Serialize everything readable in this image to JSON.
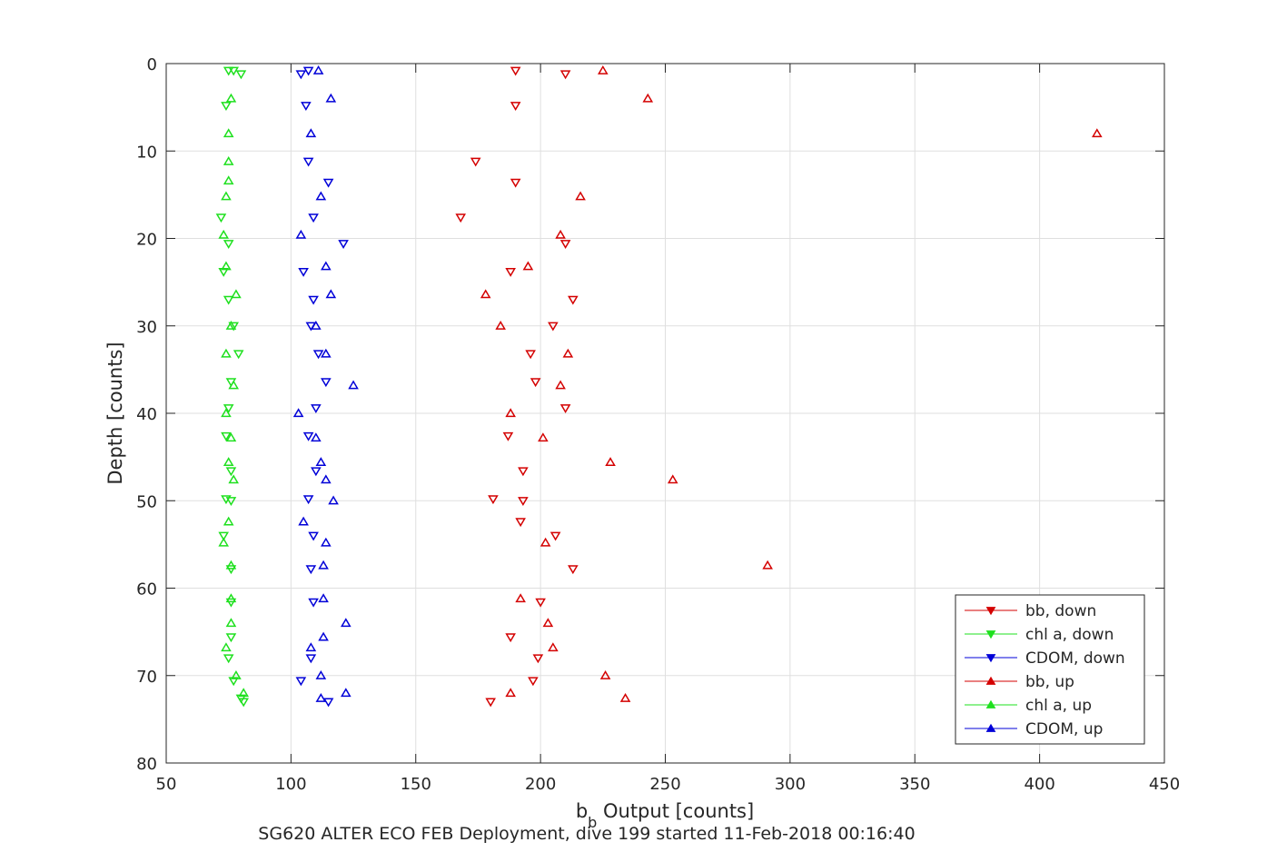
{
  "chart_data": {
    "type": "scatter",
    "title": "SG620 ALTER ECO FEB Deployment, dive 199 started 11-Feb-2018 00:16:40",
    "xlabel_main": "b",
    "xlabel_sub": "b",
    "xlabel_rest": " Output [counts]",
    "ylabel": "Depth [counts]",
    "xlim": [
      50,
      450
    ],
    "ylim": [
      0,
      80
    ],
    "y_reversed": true,
    "grid": true,
    "legend_position": "bottom-right",
    "xticks": [
      50,
      100,
      150,
      200,
      250,
      300,
      350,
      400,
      450
    ],
    "yticks": [
      0,
      10,
      20,
      30,
      40,
      50,
      60,
      70,
      80
    ],
    "series": [
      {
        "name": "bb, down",
        "color": "#d40000",
        "marker": "triangle-down",
        "points": [
          [
            190,
            0.8
          ],
          [
            210,
            1.2
          ],
          [
            190,
            4.8
          ],
          [
            174,
            11.2
          ],
          [
            190,
            13.6
          ],
          [
            168,
            17.6
          ],
          [
            210,
            20.6
          ],
          [
            188,
            23.8
          ],
          [
            213,
            27.0
          ],
          [
            205,
            30.0
          ],
          [
            196,
            33.2
          ],
          [
            198,
            36.4
          ],
          [
            210,
            39.4
          ],
          [
            187,
            42.6
          ],
          [
            193,
            46.6
          ],
          [
            181,
            49.8
          ],
          [
            193,
            50.0
          ],
          [
            192,
            52.4
          ],
          [
            206,
            54.0
          ],
          [
            213,
            57.8
          ],
          [
            200,
            61.6
          ],
          [
            188,
            65.6
          ],
          [
            199,
            68.0
          ],
          [
            197,
            70.6
          ],
          [
            180,
            73.0
          ]
        ]
      },
      {
        "name": "chl a, down",
        "color": "#1ee01e",
        "marker": "triangle-down",
        "points": [
          [
            75,
            0.8
          ],
          [
            77,
            0.8
          ],
          [
            80,
            1.2
          ],
          [
            74,
            4.8
          ],
          [
            72,
            17.6
          ],
          [
            75,
            20.6
          ],
          [
            73,
            23.8
          ],
          [
            75,
            27.0
          ],
          [
            77,
            30.0
          ],
          [
            79,
            33.2
          ],
          [
            76,
            36.4
          ],
          [
            75,
            39.4
          ],
          [
            74,
            42.6
          ],
          [
            76,
            46.6
          ],
          [
            74,
            49.8
          ],
          [
            76,
            50.0
          ],
          [
            73,
            54.0
          ],
          [
            76,
            57.8
          ],
          [
            76,
            61.6
          ],
          [
            76,
            65.6
          ],
          [
            75,
            68.0
          ],
          [
            77,
            70.6
          ],
          [
            80,
            72.6
          ],
          [
            81,
            73.0
          ]
        ]
      },
      {
        "name": "CDOM, down",
        "color": "#0000d8",
        "marker": "triangle-down",
        "points": [
          [
            107,
            0.8
          ],
          [
            104,
            1.2
          ],
          [
            106,
            4.8
          ],
          [
            107,
            11.2
          ],
          [
            115,
            13.6
          ],
          [
            109,
            17.6
          ],
          [
            121,
            20.6
          ],
          [
            105,
            23.8
          ],
          [
            109,
            27.0
          ],
          [
            108,
            30.0
          ],
          [
            111,
            33.2
          ],
          [
            114,
            36.4
          ],
          [
            110,
            39.4
          ],
          [
            107,
            42.6
          ],
          [
            110,
            46.6
          ],
          [
            107,
            49.8
          ],
          [
            109,
            54.0
          ],
          [
            108,
            57.8
          ],
          [
            109,
            61.6
          ],
          [
            108,
            68.0
          ],
          [
            104,
            70.6
          ],
          [
            115,
            73.0
          ]
        ]
      },
      {
        "name": "bb, up",
        "color": "#d40000",
        "marker": "triangle-up",
        "points": [
          [
            225,
            0.8
          ],
          [
            243,
            4.0
          ],
          [
            423,
            8.0
          ],
          [
            216,
            15.2
          ],
          [
            208,
            19.6
          ],
          [
            195,
            23.2
          ],
          [
            178,
            26.4
          ],
          [
            184,
            30.0
          ],
          [
            211,
            33.2
          ],
          [
            208,
            36.8
          ],
          [
            188,
            40.0
          ],
          [
            201,
            42.8
          ],
          [
            228,
            45.6
          ],
          [
            253,
            47.6
          ],
          [
            202,
            54.8
          ],
          [
            291,
            57.4
          ],
          [
            192,
            61.2
          ],
          [
            203,
            64.0
          ],
          [
            205,
            66.8
          ],
          [
            226,
            70.0
          ],
          [
            188,
            72.0
          ],
          [
            234,
            72.6
          ]
        ]
      },
      {
        "name": "chl a, up",
        "color": "#1ee01e",
        "marker": "triangle-up",
        "points": [
          [
            76,
            4.0
          ],
          [
            75,
            8.0
          ],
          [
            75,
            11.2
          ],
          [
            75,
            13.4
          ],
          [
            74,
            15.2
          ],
          [
            73,
            19.6
          ],
          [
            74,
            23.2
          ],
          [
            78,
            26.4
          ],
          [
            76,
            30.0
          ],
          [
            74,
            33.2
          ],
          [
            77,
            36.8
          ],
          [
            74,
            40.0
          ],
          [
            76,
            42.8
          ],
          [
            75,
            45.6
          ],
          [
            77,
            47.6
          ],
          [
            75,
            52.4
          ],
          [
            73,
            54.8
          ],
          [
            76,
            57.4
          ],
          [
            76,
            61.2
          ],
          [
            76,
            64.0
          ],
          [
            74,
            66.8
          ],
          [
            78,
            70.0
          ],
          [
            81,
            72.0
          ]
        ]
      },
      {
        "name": "CDOM, up",
        "color": "#0000d8",
        "marker": "triangle-up",
        "points": [
          [
            111,
            0.8
          ],
          [
            116,
            4.0
          ],
          [
            108,
            8.0
          ],
          [
            112,
            15.2
          ],
          [
            104,
            19.6
          ],
          [
            114,
            23.2
          ],
          [
            116,
            26.4
          ],
          [
            110,
            30.0
          ],
          [
            114,
            33.2
          ],
          [
            125,
            36.8
          ],
          [
            103,
            40.0
          ],
          [
            110,
            42.8
          ],
          [
            112,
            45.6
          ],
          [
            114,
            47.6
          ],
          [
            117,
            50.0
          ],
          [
            105,
            52.4
          ],
          [
            114,
            54.8
          ],
          [
            113,
            57.4
          ],
          [
            113,
            61.2
          ],
          [
            122,
            64.0
          ],
          [
            113,
            65.6
          ],
          [
            108,
            66.8
          ],
          [
            112,
            70.0
          ],
          [
            122,
            72.0
          ],
          [
            112,
            72.6
          ]
        ]
      }
    ]
  }
}
